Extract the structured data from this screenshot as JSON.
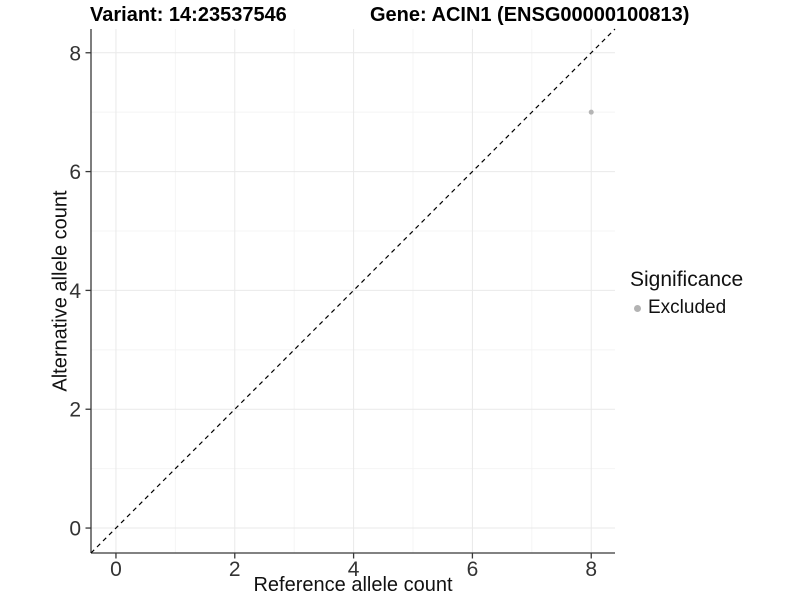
{
  "title": {
    "variant": "Variant: 14:23537546",
    "gene": "Gene: ACIN1 (ENSG00000100813)"
  },
  "chart_data": {
    "type": "scatter",
    "xlabel": "Reference allele count",
    "ylabel": "Alternative allele count",
    "xlim": [
      -0.42,
      8.4
    ],
    "ylim": [
      -0.42,
      8.4
    ],
    "xticks": [
      0,
      2,
      4,
      6,
      8
    ],
    "yticks": [
      0,
      2,
      4,
      6,
      8
    ],
    "minor_xticks": [
      1,
      3,
      5,
      7
    ],
    "minor_yticks": [
      1,
      3,
      5,
      7
    ],
    "grid": "major and minor, light gray on white panel",
    "identity_line": {
      "style": "dashed",
      "color": "#000000",
      "from": [
        -0.42,
        -0.42
      ],
      "to": [
        8.4,
        8.4
      ]
    },
    "series": [
      {
        "name": "Excluded",
        "marker": "circle",
        "marker_radius": 2.5,
        "color": "#b5b5b5",
        "points": [
          {
            "x": 8,
            "y": 7
          }
        ]
      }
    ],
    "legend": {
      "title": "Significance",
      "position": "right",
      "entries": [
        {
          "label": "Excluded",
          "color": "#b3b3b3"
        }
      ]
    }
  },
  "colors": {
    "grid_major": "#e9e9e9",
    "grid_minor": "#f4f4f4",
    "axis_line": "#383838",
    "tick_text": "#333333",
    "point": "#b5b5b5"
  }
}
